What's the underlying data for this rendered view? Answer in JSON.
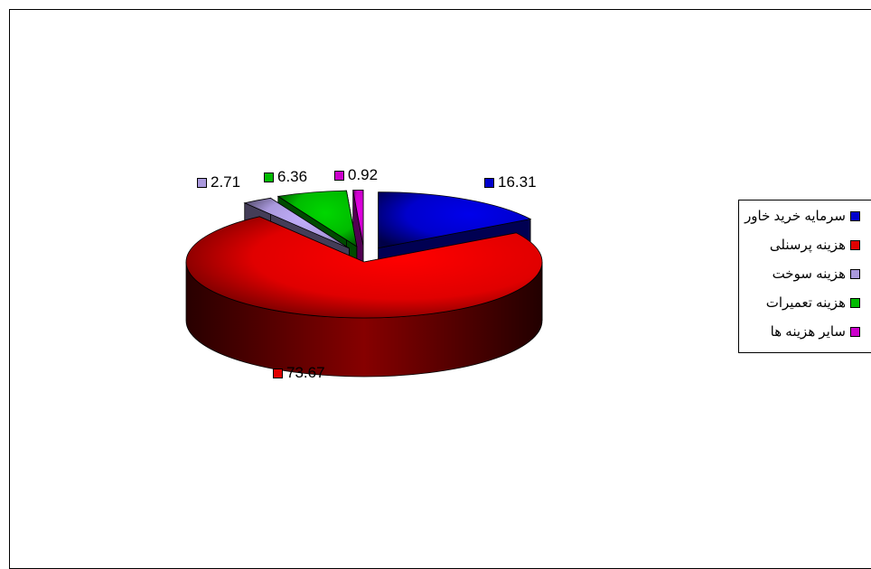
{
  "chart_data": {
    "type": "pie",
    "categories": [
      "سرمایه خرید خاور",
      "هزینه پرسنلی",
      "هزینه سوخت",
      "هزینه تعمیرات",
      "سایر هزینه ها"
    ],
    "values": [
      16.31,
      73.67,
      2.71,
      6.36,
      0.92
    ],
    "value_labels": [
      "16.31",
      "73.67",
      "2.71",
      "6.36",
      "0.92"
    ],
    "colors": [
      "#0000cc",
      "#e00000",
      "#aa99dd",
      "#00bb00",
      "#cc00cc"
    ],
    "legend_position": "right",
    "three_d": true,
    "exploded": true
  }
}
